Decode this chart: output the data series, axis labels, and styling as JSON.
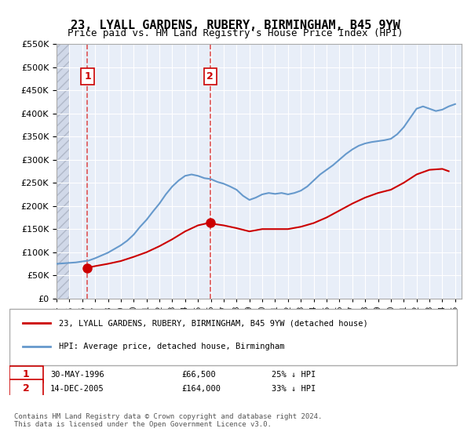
{
  "title": "23, LYALL GARDENS, RUBERY, BIRMINGHAM, B45 9YW",
  "subtitle": "Price paid vs. HM Land Registry's House Price Index (HPI)",
  "legend_entry1": "23, LYALL GARDENS, RUBERY, BIRMINGHAM, B45 9YW (detached house)",
  "legend_entry2": "HPI: Average price, detached house, Birmingham",
  "sale1_label": "1",
  "sale1_date": "30-MAY-1996",
  "sale1_price": "£66,500",
  "sale1_hpi": "25% ↓ HPI",
  "sale2_label": "2",
  "sale2_date": "14-DEC-2005",
  "sale2_price": "£164,000",
  "sale2_hpi": "33% ↓ HPI",
  "copyright": "Contains HM Land Registry data © Crown copyright and database right 2024.\nThis data is licensed under the Open Government Licence v3.0.",
  "sale1_x": 1996.41,
  "sale1_y": 66500,
  "sale2_x": 2005.95,
  "sale2_y": 164000,
  "vline1_x": 1996.41,
  "vline2_x": 2005.95,
  "ylim": [
    0,
    550000
  ],
  "xlim_start": 1994.0,
  "xlim_end": 2025.5,
  "hpi_color": "#6699cc",
  "price_color": "#cc0000",
  "bg_plot": "#e8eef8",
  "bg_hatch": "#d0d8e8",
  "grid_color": "#ffffff",
  "vline_color": "#dd4444",
  "hpi_line": {
    "x": [
      1994,
      1994.5,
      1995,
      1995.5,
      1996,
      1996.5,
      1997,
      1997.5,
      1998,
      1998.5,
      1999,
      1999.5,
      2000,
      2000.5,
      2001,
      2001.5,
      2002,
      2002.5,
      2003,
      2003.5,
      2004,
      2004.5,
      2005,
      2005.5,
      2006,
      2006.5,
      2007,
      2007.5,
      2008,
      2008.5,
      2009,
      2009.5,
      2010,
      2010.5,
      2011,
      2011.5,
      2012,
      2012.5,
      2013,
      2013.5,
      2014,
      2014.5,
      2015,
      2015.5,
      2016,
      2016.5,
      2017,
      2017.5,
      2018,
      2018.5,
      2019,
      2019.5,
      2020,
      2020.5,
      2021,
      2021.5,
      2022,
      2022.5,
      2023,
      2023.5,
      2024,
      2024.5,
      2025
    ],
    "y": [
      75000,
      76000,
      77000,
      78000,
      80000,
      82000,
      87000,
      93000,
      99000,
      107000,
      115000,
      125000,
      138000,
      155000,
      170000,
      188000,
      205000,
      225000,
      242000,
      255000,
      265000,
      268000,
      265000,
      260000,
      258000,
      252000,
      248000,
      242000,
      235000,
      222000,
      213000,
      218000,
      225000,
      228000,
      226000,
      228000,
      225000,
      228000,
      233000,
      242000,
      255000,
      268000,
      278000,
      288000,
      300000,
      312000,
      322000,
      330000,
      335000,
      338000,
      340000,
      342000,
      345000,
      355000,
      370000,
      390000,
      410000,
      415000,
      410000,
      405000,
      408000,
      415000,
      420000
    ]
  },
  "price_line": {
    "x": [
      1996.41,
      1997,
      1998,
      1999,
      2000,
      2001,
      2002,
      2003,
      2004,
      2005,
      2005.95,
      2006,
      2007,
      2008,
      2009,
      2010,
      2011,
      2012,
      2013,
      2014,
      2015,
      2016,
      2017,
      2018,
      2019,
      2020,
      2021,
      2022,
      2023,
      2024,
      2024.5
    ],
    "y": [
      66500,
      70000,
      75000,
      81000,
      90000,
      100000,
      113000,
      128000,
      145000,
      158000,
      164000,
      162000,
      158000,
      152000,
      145000,
      150000,
      150000,
      150000,
      155000,
      163000,
      175000,
      190000,
      205000,
      218000,
      228000,
      235000,
      250000,
      268000,
      278000,
      280000,
      275000
    ]
  }
}
